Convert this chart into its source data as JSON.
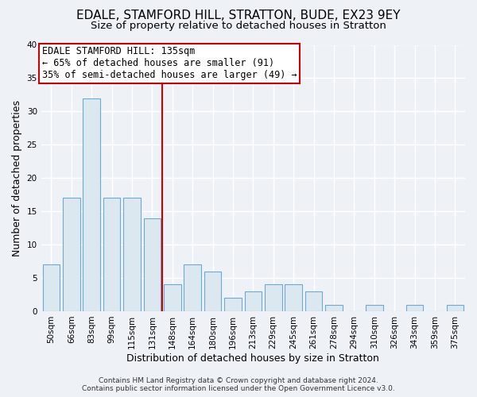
{
  "title": "EDALE, STAMFORD HILL, STRATTON, BUDE, EX23 9EY",
  "subtitle": "Size of property relative to detached houses in Stratton",
  "xlabel": "Distribution of detached houses by size in Stratton",
  "ylabel": "Number of detached properties",
  "bin_labels": [
    "50sqm",
    "66sqm",
    "83sqm",
    "99sqm",
    "115sqm",
    "131sqm",
    "148sqm",
    "164sqm",
    "180sqm",
    "196sqm",
    "213sqm",
    "229sqm",
    "245sqm",
    "261sqm",
    "278sqm",
    "294sqm",
    "310sqm",
    "326sqm",
    "343sqm",
    "359sqm",
    "375sqm"
  ],
  "bar_values": [
    7,
    17,
    32,
    17,
    17,
    14,
    4,
    7,
    6,
    2,
    3,
    4,
    4,
    3,
    1,
    0,
    1,
    0,
    1,
    0,
    1
  ],
  "bar_color": "#dce8f0",
  "bar_edge_color": "#6aaad4",
  "property_line_x": 5.5,
  "property_line_color": "#cc0000",
  "annotation_text_line1": "EDALE STAMFORD HILL: 135sqm",
  "annotation_text_line2": "← 65% of detached houses are smaller (91)",
  "annotation_text_line3": "35% of semi-detached houses are larger (49) →",
  "annotation_box_color": "#cc0000",
  "ylim": [
    0,
    40
  ],
  "yticks": [
    0,
    5,
    10,
    15,
    20,
    25,
    30,
    35,
    40
  ],
  "footer_line1": "Contains HM Land Registry data © Crown copyright and database right 2024.",
  "footer_line2": "Contains public sector information licensed under the Open Government Licence v3.0.",
  "background_color": "#eef2f7",
  "grid_color": "#ffffff",
  "title_fontsize": 11,
  "subtitle_fontsize": 9.5,
  "axis_label_fontsize": 9,
  "tick_fontsize": 7.5,
  "annotation_fontsize": 8.5,
  "footer_fontsize": 6.5
}
